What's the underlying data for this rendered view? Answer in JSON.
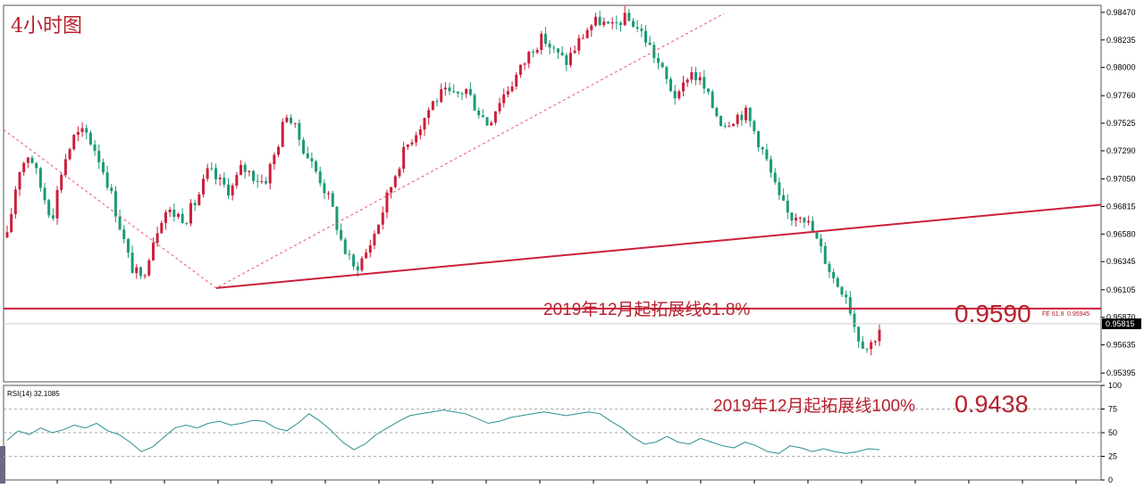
{
  "window_title": "4小时图",
  "colors": {
    "up": "#cc1f3a",
    "down": "#1a9a78",
    "trendline": "#cc1f3a",
    "fib_dashed": "#e8556b",
    "rsi_line": "#2c8f92",
    "annotation": "#b5202c",
    "current_price_bg": "#000000"
  },
  "annotations": {
    "fib_618_label": "2019年12月起拓展线61.8%",
    "fib_618_value": "0.9590",
    "fe_label": "FE 61.8",
    "fe_value": "0.95945",
    "fib_100_label": "2019年12月起拓展线100%",
    "fib_100_value": "0.9438"
  },
  "chart_data": [
    {
      "type": "candlestick",
      "timeframe": "4小时图",
      "y_ticks": [
        "0.98470",
        "0.98235",
        "0.98000",
        "0.97760",
        "0.97525",
        "0.97290",
        "0.97050",
        "0.96815",
        "0.96580",
        "0.96345",
        "0.96105",
        "0.95870",
        "0.95635",
        "0.95395"
      ],
      "ylim": [
        0.9532,
        0.9853
      ],
      "current_price": "0.95815",
      "horizontal_level": 0.95945,
      "trendline": {
        "from_price": 0.9612,
        "to_price": 0.9683
      },
      "fib_dashed_path_prices": [
        0.9747,
        0.9612,
        0.9846
      ],
      "price_path": [
        0.9655,
        0.9712,
        0.9728,
        0.9698,
        0.9672,
        0.9718,
        0.9741,
        0.9745,
        0.9728,
        0.9702,
        0.9668,
        0.9632,
        0.9618,
        0.9652,
        0.9678,
        0.9675,
        0.9672,
        0.9688,
        0.9712,
        0.9702,
        0.9695,
        0.9715,
        0.9708,
        0.9702,
        0.9728,
        0.9762,
        0.9742,
        0.9722,
        0.9705,
        0.9682,
        0.9648,
        0.9628,
        0.964,
        0.9662,
        0.969,
        0.9718,
        0.9738,
        0.9752,
        0.977,
        0.9778,
        0.9775,
        0.9782,
        0.9765,
        0.9752,
        0.9772,
        0.9785,
        0.98,
        0.9818,
        0.9825,
        0.9812,
        0.9805,
        0.982,
        0.9835,
        0.984,
        0.9832,
        0.9842,
        0.9838,
        0.9826,
        0.9808,
        0.9788,
        0.9772,
        0.9798,
        0.9788,
        0.9768,
        0.9752,
        0.9758,
        0.9762,
        0.9742,
        0.9718,
        0.9688,
        0.9672,
        0.9678,
        0.966,
        0.964,
        0.9618,
        0.9608,
        0.9572,
        0.956,
        0.9578
      ],
      "rsi": {
        "label": "RSI(14) 32.1085",
        "levels": [
          "100",
          "75",
          "50",
          "25",
          "0"
        ],
        "ylim": [
          0,
          100
        ],
        "values": [
          42,
          52,
          48,
          55,
          50,
          53,
          58,
          55,
          60,
          52,
          48,
          40,
          30,
          35,
          45,
          55,
          58,
          55,
          60,
          62,
          58,
          60,
          63,
          62,
          55,
          52,
          60,
          70,
          62,
          52,
          40,
          32,
          38,
          48,
          55,
          62,
          68,
          70,
          72,
          74,
          72,
          70,
          65,
          60,
          62,
          66,
          68,
          70,
          72,
          70,
          68,
          70,
          72,
          70,
          62,
          55,
          45,
          38,
          40,
          46,
          40,
          38,
          44,
          40,
          36,
          34,
          40,
          36,
          30,
          28,
          36,
          34,
          30,
          33,
          30,
          28,
          30,
          33,
          32
        ]
      }
    }
  ]
}
